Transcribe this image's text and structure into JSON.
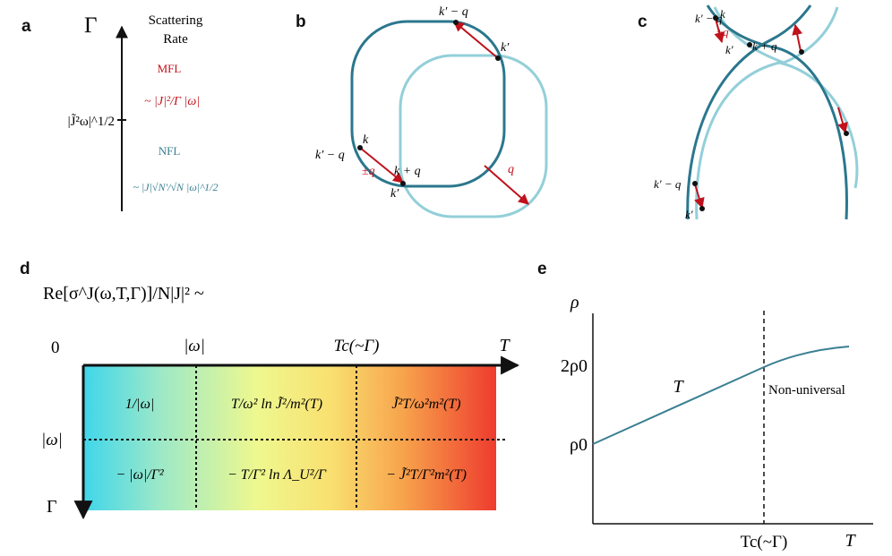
{
  "panels": {
    "a": {
      "label": "a",
      "axis_symbol": "Γ",
      "axis_title_line1": "Scattering",
      "axis_title_line2": "Rate",
      "crossover": "|J̃²ω|^1/2",
      "mfl_label": "MFL",
      "mfl_scaling": "~ |J|²/Γ |ω|",
      "nfl_label": "NFL",
      "nfl_scaling": "~ |J|√N′/√N |ω|^1/2"
    },
    "b": {
      "label": "b",
      "labels": [
        "k′ − q",
        "k′",
        "k′ − q",
        "k",
        "±q",
        "k + q",
        "k′",
        "q"
      ]
    },
    "c": {
      "label": "c",
      "labels": [
        "k′ − q",
        "k",
        "±q",
        "k′",
        "k + q",
        "k′ − q",
        "k′"
      ]
    },
    "d": {
      "label": "d",
      "formula": "Re[σ^J(ω,T,Γ)]/N|J|² ~",
      "top_axis": {
        "origin": "0",
        "t1": "|ω|",
        "t2": "Tc(~Γ)",
        "t3": "T"
      },
      "left_axis": {
        "t1": "|ω|",
        "t2": "Γ"
      },
      "cells": [
        "1/|ω|",
        "T/ω² ln J̃²/m²(T)",
        "J̃²T/ω²m²(T)",
        "− |ω|/Γ²",
        "− T/Γ² ln Λ_U²/Γ",
        "− J̃²T/Γ²m²(T)"
      ]
    },
    "e": {
      "label": "e",
      "y_axis_label": "ρ",
      "y_tick_2rho0": "2ρ0",
      "y_tick_rho0": "ρ0",
      "x_tick_tc": "Tc(~Γ)",
      "x_axis_label": "T",
      "curve_label": "T",
      "region_label": "Non-universal"
    }
  }
}
